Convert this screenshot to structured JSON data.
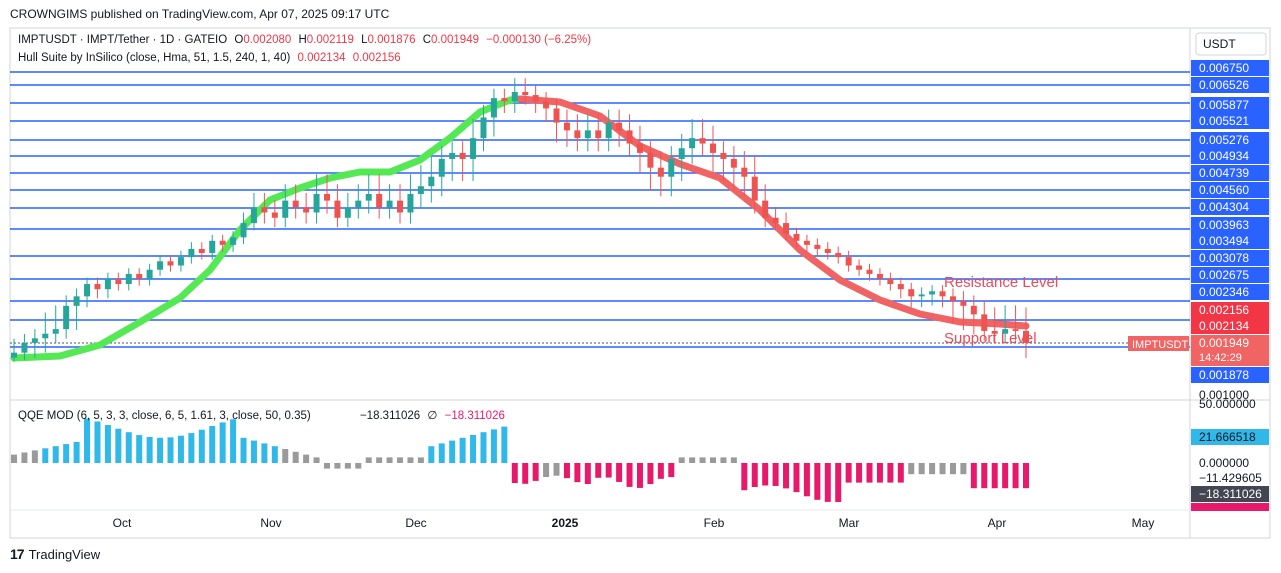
{
  "header": {
    "published": "CROWNGIMS published on TradingView.com, Apr 07, 2025 09:17 UTC"
  },
  "legend": {
    "symbol": "IMPTUSDT · IMPT/Tether · 1D · GATEIO",
    "open_label": "O",
    "open": "0.002080",
    "high_label": "H",
    "high": "0.002119",
    "low_label": "L",
    "low": "0.001876",
    "close_label": "C",
    "close": "0.001949",
    "change": "−0.000130 (−6.25%)",
    "hull": "Hull Suite by InSilico (close, Hma, 51, 1.5, 240, 1, 40)",
    "hull_v1": "0.002134",
    "hull_v2": "0.002156"
  },
  "qqe_legend": {
    "name": "QQE MOD (6, 5, 3, 3, close, 6, 5, 1.61, 3, close, 50, 0.35)",
    "v1": "−18.311026",
    "sym": "∅",
    "v2": "−18.311026"
  },
  "price_axis": {
    "currency": "USDT",
    "levels": [
      "0.006750",
      "0.006526",
      "0.005877",
      "0.005521",
      "0.005276",
      "0.004934",
      "0.004739",
      "0.004560",
      "0.004304",
      "0.003963",
      "0.003494",
      "0.003078",
      "0.002675",
      "0.002346"
    ],
    "red_tags": [
      "0.002156",
      "0.002134"
    ],
    "current_label": "0.001949",
    "countdown": "14:42:29",
    "ticker_tag": "IMPTUSDT",
    "low_tag": "0.001878",
    "bottom_tick": "0.001000"
  },
  "qqe_axis": {
    "top": "50.000000",
    "cyan_tag": "21.666518",
    "zero": "0.000000",
    "neg": "−11.429605",
    "dark_tag": "−18.311026",
    "red_partial": "−18.311026"
  },
  "annotations": {
    "resistance": "Resistance Level",
    "support": "Support Level"
  },
  "time_axis": [
    "Oct",
    "Nov",
    "Dec",
    "2025",
    "Feb",
    "Mar",
    "Apr",
    "May"
  ],
  "footer": {
    "brand": "TradingView",
    "logo": "17"
  },
  "colors": {
    "up": "#26a69a",
    "down": "#ef5350",
    "level": "#2962ff",
    "hull_up": "#55e855",
    "hull_down": "#f06464",
    "qqe_cyan": "#2fb8e8",
    "qqe_gray": "#9a9a9a",
    "qqe_pink": "#e8196b"
  },
  "chart_data": {
    "type": "candlestick",
    "symbol": "IMPTUSDT",
    "timeframe": "1D",
    "x_ticks": [
      "Oct",
      "Nov",
      "Dec",
      "2025",
      "Feb",
      "Mar",
      "Apr",
      "May"
    ],
    "horizontal_levels": [
      0.00675,
      0.006526,
      0.005877,
      0.005521,
      0.005276,
      0.004934,
      0.004739,
      0.00456,
      0.004304,
      0.003963,
      0.003494,
      0.003078,
      0.002675,
      0.002346,
      0.002156,
      0.001949,
      0.001878
    ],
    "resistance": 0.002346,
    "support": 0.001878,
    "closes": [
      0.0019,
      0.00195,
      0.002,
      0.00205,
      0.0021,
      0.0022,
      0.0023,
      0.0025,
      0.0024,
      0.0026,
      0.0025,
      0.0027,
      0.0026,
      0.0028,
      0.003,
      0.0029,
      0.0031,
      0.0033,
      0.0032,
      0.0035,
      0.0034,
      0.0036,
      0.004,
      0.0043,
      0.0042,
      0.0041,
      0.0044,
      0.0043,
      0.0042,
      0.0045,
      0.0044,
      0.0041,
      0.0043,
      0.0044,
      0.0045,
      0.0043,
      0.0044,
      0.0042,
      0.0045,
      0.0046,
      0.0047,
      0.0049,
      0.005,
      0.0049,
      0.0053,
      0.0056,
      0.0061,
      0.006,
      0.0063,
      0.0062,
      0.006,
      0.0058,
      0.0055,
      0.0054,
      0.0053,
      0.0054,
      0.0053,
      0.0055,
      0.0054,
      0.0052,
      0.005,
      0.0048,
      0.0047,
      0.0049,
      0.0051,
      0.0053,
      0.0052,
      0.005,
      0.0049,
      0.0048,
      0.0047,
      0.0044,
      0.0041,
      0.004,
      0.0037,
      0.0035,
      0.0034,
      0.0033,
      0.0032,
      0.0031,
      0.0029,
      0.0028,
      0.0027,
      0.0026,
      0.0025,
      0.0024,
      0.0023,
      0.00232,
      0.00236,
      0.0023,
      0.00225,
      0.0022,
      0.00215,
      0.00208,
      0.00205,
      0.0021,
      0.00208,
      0.00195
    ],
    "qqe_range": [
      -40,
      50
    ]
  }
}
